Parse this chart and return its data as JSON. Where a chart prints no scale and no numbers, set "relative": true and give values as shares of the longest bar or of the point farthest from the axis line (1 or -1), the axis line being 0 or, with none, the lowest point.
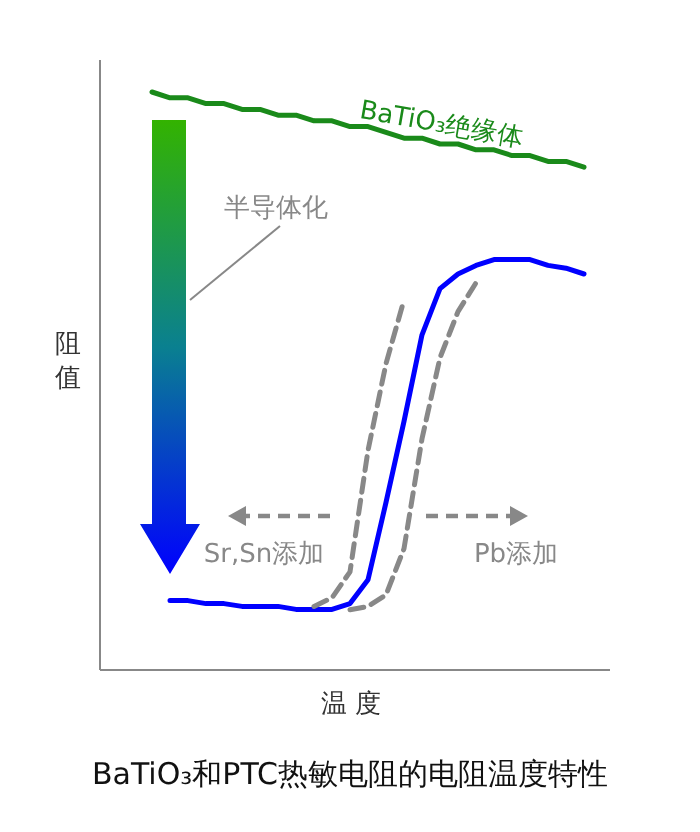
{
  "chart_data": {
    "type": "line",
    "title": "BaTiO₃和PTC热敏电阻的电阻温度特性",
    "xlabel": "温度",
    "ylabel": "阻值",
    "relative": true,
    "grid": false,
    "categories": [
      null,
      null,
      null,
      null,
      null,
      null,
      null,
      null,
      null,
      null,
      null,
      null,
      null,
      null,
      null,
      null,
      null,
      null,
      null,
      null,
      null,
      null,
      null,
      null,
      null
    ],
    "series": [
      {
        "name": "BaTiO₃绝缘体",
        "color": "#1a8a1a",
        "line_style": "solid",
        "values": [
          1.0,
          0.99,
          0.99,
          0.98,
          0.98,
          0.97,
          0.97,
          0.96,
          0.96,
          0.95,
          0.95,
          0.94,
          0.94,
          0.93,
          0.92,
          0.92,
          0.91,
          0.91,
          0.9,
          0.9,
          0.89,
          0.89,
          0.88,
          0.88,
          0.87
        ]
      },
      {
        "color": "#0000ff",
        "line_style": "solid",
        "values": [
          null,
          0.12,
          0.12,
          0.115,
          0.115,
          0.11,
          0.11,
          0.11,
          0.105,
          0.105,
          0.105,
          0.115,
          0.156,
          0.29,
          0.43,
          0.58,
          0.66,
          0.685,
          0.7,
          0.71,
          0.71,
          0.71,
          0.7,
          0.695,
          0.685
        ]
      },
      {
        "color": "#888888",
        "line_style": "dashed",
        "values": [
          null,
          null,
          null,
          null,
          null,
          null,
          null,
          null,
          null,
          0.11,
          0.125,
          0.17,
          0.38,
          0.53,
          0.64,
          null,
          null,
          null,
          null,
          null,
          null,
          null,
          null,
          null,
          null
        ]
      },
      {
        "color": "#888888",
        "line_style": "dashed",
        "values": [
          null,
          null,
          null,
          null,
          null,
          null,
          null,
          null,
          null,
          null,
          null,
          0.104,
          0.11,
          0.13,
          0.21,
          0.4,
          0.54,
          0.62,
          0.67,
          null,
          null,
          null,
          null,
          null,
          null
        ]
      }
    ],
    "annotations": [
      "半导体化",
      "Sr,Sn添加",
      "Pb添加"
    ]
  }
}
